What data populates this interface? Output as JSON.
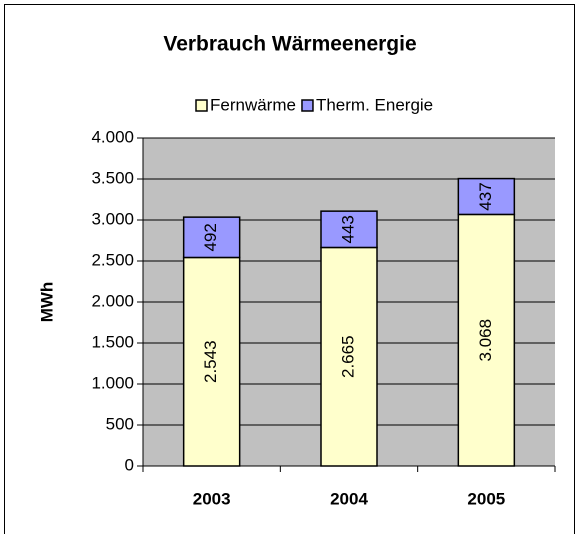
{
  "chart_data": {
    "type": "stacked_bar",
    "title": "Verbrauch Wärmeenergie",
    "y_label": "MWh",
    "categories": [
      "2003",
      "2004",
      "2005"
    ],
    "series": [
      {
        "name": "Fernwärme",
        "color": "#ffffcc",
        "values": [
          2543,
          2665,
          3068
        ],
        "value_labels": [
          "2.543",
          "2.665",
          "3.068"
        ]
      },
      {
        "name": "Therm. Energie",
        "color": "#9999ff",
        "values": [
          492,
          443,
          437
        ]
      }
    ],
    "ylim": [
      0,
      4000
    ],
    "yticks": [
      0,
      500,
      {
        "value": 1000,
        "label": "1.000"
      },
      {
        "value": 1500,
        "label": "1.500"
      },
      {
        "value": 2000,
        "label": "2.000"
      },
      {
        "value": 2500,
        "label": "2.500"
      },
      {
        "value": 3000,
        "label": "3.000"
      },
      {
        "value": 3500,
        "label": "3.500"
      },
      {
        "value": 4000,
        "label": "4.000"
      }
    ],
    "grid": true,
    "legend": "top"
  }
}
